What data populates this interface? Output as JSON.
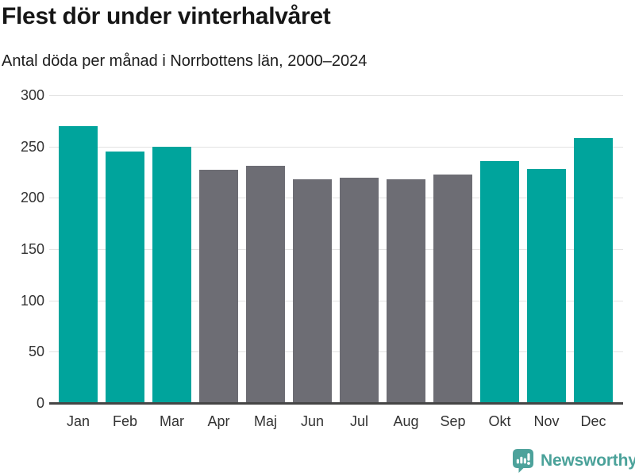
{
  "chart_data": {
    "type": "bar",
    "title": "Flest dör under vinterhalvåret",
    "subtitle": "Antal döda per månad i Norrbottens län, 2000–2024",
    "categories": [
      "Jan",
      "Feb",
      "Mar",
      "Apr",
      "Maj",
      "Jun",
      "Jul",
      "Aug",
      "Sep",
      "Okt",
      "Nov",
      "Dec"
    ],
    "values": [
      270,
      245,
      250,
      227,
      231,
      218,
      220,
      218,
      223,
      236,
      228,
      258
    ],
    "bar_colors": [
      "teal",
      "teal",
      "teal",
      "gray",
      "gray",
      "gray",
      "gray",
      "gray",
      "gray",
      "teal",
      "teal",
      "teal"
    ],
    "highlighted_categories": [
      "Jan",
      "Feb",
      "Mar",
      "Okt",
      "Nov",
      "Dec"
    ],
    "palette": {
      "teal": "#00a49c",
      "gray": "#6d6d74"
    },
    "xlabel": "",
    "ylabel": "",
    "ylim": [
      0,
      300
    ],
    "yticks": [
      0,
      50,
      100,
      150,
      200,
      250,
      300
    ],
    "grid": "horizontal",
    "legend": "none"
  },
  "footer": {
    "brand": "Newsworthy",
    "logo_icon": "bar-chart-speech-bubble-icon",
    "brand_color": "#4ba29a"
  },
  "colors": {
    "background": "#ffffff",
    "grid_line": "#e3e3e3",
    "axis_line": "#454545",
    "tick_label": "#333333",
    "title_text": "#161616"
  }
}
